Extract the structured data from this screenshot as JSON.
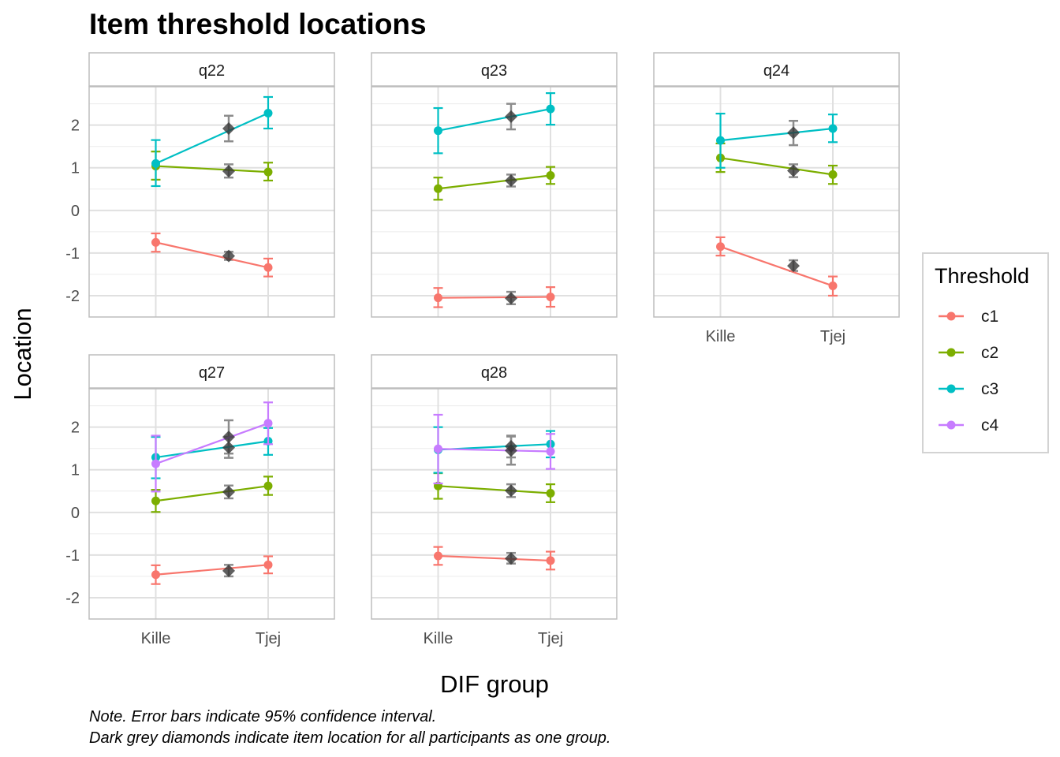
{
  "chart_data": {
    "type": "line",
    "title": "Item threshold locations",
    "xlabel": "DIF group",
    "ylabel": "Location",
    "categories": [
      "Kille",
      "Tjej"
    ],
    "ylim": [
      -2.5,
      2.9
    ],
    "yticks": [
      -2,
      -1,
      0,
      1,
      2
    ],
    "ytick_labels": [
      "-2",
      "-1",
      "0",
      "1",
      "2"
    ],
    "grid": true,
    "legend": {
      "title": "Threshold",
      "placement": "right",
      "entries": [
        {
          "key": "c1",
          "label": "c1",
          "color": "#F8766D"
        },
        {
          "key": "c2",
          "label": "c2",
          "color": "#7CAE00"
        },
        {
          "key": "c3",
          "label": "c3",
          "color": "#00BFC4"
        },
        {
          "key": "c4",
          "label": "c4",
          "color": "#C77CFF"
        }
      ]
    },
    "overall_marker_color": "#333333",
    "notes": [
      "Note. Error bars indicate 95% confidence interval.",
      "Dark grey diamonds indicate item location for all participants as one group."
    ],
    "panels": [
      {
        "label": "q22",
        "series": [
          {
            "threshold": "c1",
            "points": [
              {
                "group": "Kille",
                "value": -0.75,
                "lower": -0.97,
                "upper": -0.54
              },
              {
                "group": "Tjej",
                "value": -1.34,
                "lower": -1.55,
                "upper": -1.13
              }
            ],
            "overall": {
              "value": -1.07,
              "lower": -1.16,
              "upper": -0.97
            }
          },
          {
            "threshold": "c2",
            "points": [
              {
                "group": "Kille",
                "value": 1.04,
                "lower": 0.72,
                "upper": 1.38
              },
              {
                "group": "Tjej",
                "value": 0.9,
                "lower": 0.7,
                "upper": 1.12
              }
            ],
            "overall": {
              "value": 0.92,
              "lower": 0.77,
              "upper": 1.08
            }
          },
          {
            "threshold": "c3",
            "points": [
              {
                "group": "Kille",
                "value": 1.1,
                "lower": 0.57,
                "upper": 1.65
              },
              {
                "group": "Tjej",
                "value": 2.28,
                "lower": 1.92,
                "upper": 2.66
              }
            ],
            "overall": {
              "value": 1.92,
              "lower": 1.62,
              "upper": 2.22
            }
          }
        ]
      },
      {
        "label": "q23",
        "series": [
          {
            "threshold": "c1",
            "points": [
              {
                "group": "Kille",
                "value": -2.05,
                "lower": -2.27,
                "upper": -1.82
              },
              {
                "group": "Tjej",
                "value": -2.03,
                "lower": -2.26,
                "upper": -1.8
              }
            ],
            "overall": {
              "value": -2.06,
              "lower": -2.2,
              "upper": -1.91
            }
          },
          {
            "threshold": "c2",
            "points": [
              {
                "group": "Kille",
                "value": 0.51,
                "lower": 0.25,
                "upper": 0.77
              },
              {
                "group": "Tjej",
                "value": 0.82,
                "lower": 0.62,
                "upper": 1.02
              }
            ],
            "overall": {
              "value": 0.7,
              "lower": 0.56,
              "upper": 0.84
            }
          },
          {
            "threshold": "c3",
            "points": [
              {
                "group": "Kille",
                "value": 1.87,
                "lower": 1.34,
                "upper": 2.4
              },
              {
                "group": "Tjej",
                "value": 2.38,
                "lower": 2.01,
                "upper": 2.75
              }
            ],
            "overall": {
              "value": 2.2,
              "lower": 1.9,
              "upper": 2.5
            }
          }
        ]
      },
      {
        "label": "q24",
        "series": [
          {
            "threshold": "c1",
            "points": [
              {
                "group": "Kille",
                "value": -0.85,
                "lower": -1.06,
                "upper": -0.63
              },
              {
                "group": "Tjej",
                "value": -1.77,
                "lower": -2.0,
                "upper": -1.55
              }
            ],
            "overall": {
              "value": -1.3,
              "lower": -1.42,
              "upper": -1.17
            }
          },
          {
            "threshold": "c2",
            "points": [
              {
                "group": "Kille",
                "value": 1.23,
                "lower": 0.9,
                "upper": 1.57
              },
              {
                "group": "Tjej",
                "value": 0.84,
                "lower": 0.62,
                "upper": 1.05
              }
            ],
            "overall": {
              "value": 0.93,
              "lower": 0.78,
              "upper": 1.08
            }
          },
          {
            "threshold": "c3",
            "points": [
              {
                "group": "Kille",
                "value": 1.64,
                "lower": 1.0,
                "upper": 2.27
              },
              {
                "group": "Tjej",
                "value": 1.92,
                "lower": 1.6,
                "upper": 2.25
              }
            ],
            "overall": {
              "value": 1.82,
              "lower": 1.53,
              "upper": 2.1
            }
          }
        ]
      },
      {
        "label": "q27",
        "series": [
          {
            "threshold": "c1",
            "points": [
              {
                "group": "Kille",
                "value": -1.46,
                "lower": -1.68,
                "upper": -1.24
              },
              {
                "group": "Tjej",
                "value": -1.23,
                "lower": -1.43,
                "upper": -1.03
              }
            ],
            "overall": {
              "value": -1.37,
              "lower": -1.5,
              "upper": -1.23
            }
          },
          {
            "threshold": "c2",
            "points": [
              {
                "group": "Kille",
                "value": 0.27,
                "lower": 0.01,
                "upper": 0.53
              },
              {
                "group": "Tjej",
                "value": 0.62,
                "lower": 0.41,
                "upper": 0.84
              }
            ],
            "overall": {
              "value": 0.48,
              "lower": 0.33,
              "upper": 0.63
            }
          },
          {
            "threshold": "c3",
            "points": [
              {
                "group": "Kille",
                "value": 1.29,
                "lower": 0.8,
                "upper": 1.77
              },
              {
                "group": "Tjej",
                "value": 1.67,
                "lower": 1.35,
                "upper": 1.98
              }
            ],
            "overall": {
              "value": 1.52,
              "lower": 1.28,
              "upper": 1.77
            }
          },
          {
            "threshold": "c4",
            "points": [
              {
                "group": "Kille",
                "value": 1.14,
                "lower": 0.49,
                "upper": 1.8
              },
              {
                "group": "Tjej",
                "value": 2.09,
                "lower": 1.6,
                "upper": 2.58
              }
            ],
            "overall": {
              "value": 1.77,
              "lower": 1.38,
              "upper": 2.16
            }
          }
        ]
      },
      {
        "label": "q28",
        "series": [
          {
            "threshold": "c1",
            "points": [
              {
                "group": "Kille",
                "value": -1.02,
                "lower": -1.23,
                "upper": -0.81
              },
              {
                "group": "Tjej",
                "value": -1.13,
                "lower": -1.34,
                "upper": -0.92
              }
            ],
            "overall": {
              "value": -1.08,
              "lower": -1.2,
              "upper": -0.95
            }
          },
          {
            "threshold": "c2",
            "points": [
              {
                "group": "Kille",
                "value": 0.62,
                "lower": 0.32,
                "upper": 0.92
              },
              {
                "group": "Tjej",
                "value": 0.45,
                "lower": 0.24,
                "upper": 0.66
              }
            ],
            "overall": {
              "value": 0.51,
              "lower": 0.36,
              "upper": 0.66
            }
          },
          {
            "threshold": "c3",
            "points": [
              {
                "group": "Kille",
                "value": 1.47,
                "lower": 0.93,
                "upper": 2.0
              },
              {
                "group": "Tjej",
                "value": 1.6,
                "lower": 1.29,
                "upper": 1.91
              }
            ],
            "overall": {
              "value": 1.55,
              "lower": 1.29,
              "upper": 1.8
            }
          },
          {
            "threshold": "c4",
            "points": [
              {
                "group": "Kille",
                "value": 1.49,
                "lower": 0.68,
                "upper": 2.29
              },
              {
                "group": "Tjej",
                "value": 1.43,
                "lower": 1.02,
                "upper": 1.84
              }
            ],
            "overall": {
              "value": 1.45,
              "lower": 1.12,
              "upper": 1.78
            }
          }
        ]
      }
    ]
  }
}
